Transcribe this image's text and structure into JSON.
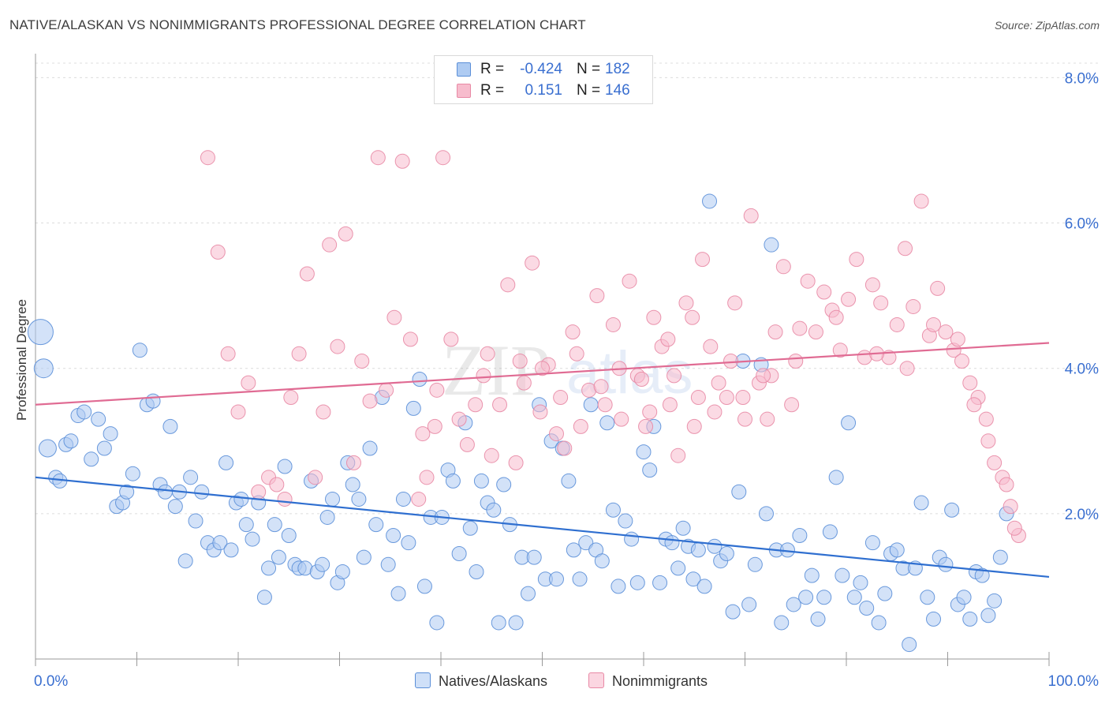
{
  "header": {
    "title": "NATIVE/ALASKAN VS NONIMMIGRANTS PROFESSIONAL DEGREE CORRELATION CHART",
    "source": "Source: ZipAtlas.com"
  },
  "watermark": {
    "zip": "ZIP",
    "atlas": "atlas"
  },
  "legend": {
    "r_label": "R =",
    "n_label": "N =",
    "rows": [
      {
        "r": "-0.424",
        "n": "182"
      },
      {
        "r": "0.151",
        "n": "146"
      }
    ]
  },
  "colors": {
    "blue_fill": "#aecbf2",
    "blue_stroke": "#5b8fd8",
    "blue_line": "#2f6fd0",
    "pink_fill": "#f7bccd",
    "pink_stroke": "#e889a5",
    "pink_line": "#e06b93",
    "grid": "#dcdcdc",
    "tick_label": "#3a6fd0"
  },
  "chart_data": {
    "type": "scatter",
    "title": "NATIVE/ALASKAN VS NONIMMIGRANTS PROFESSIONAL DEGREE CORRELATION CHART",
    "xlabel": "",
    "ylabel": "Professional Degree",
    "xlim": [
      0,
      100
    ],
    "ylim": [
      0,
      8.2
    ],
    "x_tick_labels": [
      "0.0%",
      "100.0%"
    ],
    "y_ticks": [
      2,
      4,
      6,
      8
    ],
    "y_tick_labels": [
      "2.0%",
      "4.0%",
      "6.0%",
      "8.0%"
    ],
    "grid": true,
    "legend_position": "top-center",
    "series": [
      {
        "name": "Natives/Alaskans",
        "color": "#5b8fd8",
        "trendline": {
          "x": [
            0,
            100
          ],
          "y": [
            2.5,
            1.13
          ]
        },
        "points": [
          [
            0.5,
            4.5
          ],
          [
            0.8,
            4.0
          ],
          [
            1.2,
            2.9
          ],
          [
            2.0,
            2.5
          ],
          [
            2.4,
            2.45
          ],
          [
            3.0,
            2.95
          ],
          [
            3.5,
            3.0
          ],
          [
            4.2,
            3.35
          ],
          [
            4.8,
            3.4
          ],
          [
            5.5,
            2.75
          ],
          [
            6.2,
            3.3
          ],
          [
            6.8,
            2.9
          ],
          [
            7.4,
            3.1
          ],
          [
            8.0,
            2.1
          ],
          [
            8.6,
            2.15
          ],
          [
            9.0,
            2.3
          ],
          [
            9.6,
            2.55
          ],
          [
            10.3,
            4.25
          ],
          [
            11.0,
            3.5
          ],
          [
            11.6,
            3.55
          ],
          [
            12.3,
            2.4
          ],
          [
            12.8,
            2.3
          ],
          [
            13.3,
            3.2
          ],
          [
            13.8,
            2.1
          ],
          [
            14.2,
            2.3
          ],
          [
            14.8,
            1.35
          ],
          [
            15.3,
            2.5
          ],
          [
            15.8,
            1.9
          ],
          [
            16.4,
            2.3
          ],
          [
            17.0,
            1.6
          ],
          [
            17.6,
            1.5
          ],
          [
            18.2,
            1.6
          ],
          [
            18.8,
            2.7
          ],
          [
            19.3,
            1.5
          ],
          [
            19.8,
            2.15
          ],
          [
            20.3,
            2.2
          ],
          [
            20.8,
            1.85
          ],
          [
            21.4,
            1.65
          ],
          [
            22.0,
            2.15
          ],
          [
            22.6,
            0.85
          ],
          [
            23.0,
            1.25
          ],
          [
            23.6,
            1.85
          ],
          [
            24.0,
            1.4
          ],
          [
            24.6,
            2.65
          ],
          [
            25.0,
            1.7
          ],
          [
            25.6,
            1.3
          ],
          [
            26.0,
            1.25
          ],
          [
            26.6,
            1.25
          ],
          [
            27.2,
            2.45
          ],
          [
            27.8,
            1.2
          ],
          [
            28.3,
            1.3
          ],
          [
            28.8,
            1.95
          ],
          [
            29.3,
            2.2
          ],
          [
            29.8,
            1.05
          ],
          [
            30.3,
            1.2
          ],
          [
            30.8,
            2.7
          ],
          [
            31.3,
            2.4
          ],
          [
            31.9,
            2.2
          ],
          [
            32.4,
            1.4
          ],
          [
            33.0,
            2.9
          ],
          [
            33.6,
            1.85
          ],
          [
            34.2,
            3.6
          ],
          [
            34.8,
            1.3
          ],
          [
            35.3,
            1.7
          ],
          [
            35.8,
            0.9
          ],
          [
            36.3,
            2.2
          ],
          [
            36.8,
            1.6
          ],
          [
            37.3,
            3.45
          ],
          [
            37.9,
            3.85
          ],
          [
            38.4,
            1.0
          ],
          [
            39.0,
            1.95
          ],
          [
            39.6,
            0.5
          ],
          [
            40.1,
            1.95
          ],
          [
            40.7,
            2.6
          ],
          [
            41.2,
            2.45
          ],
          [
            41.8,
            1.45
          ],
          [
            42.4,
            3.25
          ],
          [
            42.9,
            1.8
          ],
          [
            43.5,
            1.2
          ],
          [
            44.0,
            2.45
          ],
          [
            44.6,
            2.15
          ],
          [
            45.2,
            2.05
          ],
          [
            45.7,
            0.5
          ],
          [
            46.2,
            2.4
          ],
          [
            46.8,
            1.85
          ],
          [
            47.4,
            0.5
          ],
          [
            48.0,
            1.4
          ],
          [
            48.6,
            0.9
          ],
          [
            49.2,
            1.4
          ],
          [
            49.7,
            3.5
          ],
          [
            50.3,
            1.1
          ],
          [
            50.9,
            3.0
          ],
          [
            51.4,
            1.1
          ],
          [
            52.0,
            2.9
          ],
          [
            52.6,
            2.45
          ],
          [
            53.1,
            1.5
          ],
          [
            53.7,
            1.1
          ],
          [
            54.3,
            1.6
          ],
          [
            54.8,
            3.5
          ],
          [
            55.3,
            1.5
          ],
          [
            55.9,
            1.35
          ],
          [
            56.4,
            3.25
          ],
          [
            57.0,
            2.05
          ],
          [
            57.5,
            1.0
          ],
          [
            58.2,
            1.9
          ],
          [
            58.8,
            1.65
          ],
          [
            59.4,
            1.05
          ],
          [
            60.0,
            2.85
          ],
          [
            60.6,
            2.6
          ],
          [
            61.0,
            3.2
          ],
          [
            61.6,
            1.05
          ],
          [
            62.2,
            1.65
          ],
          [
            62.8,
            1.6
          ],
          [
            63.4,
            1.25
          ],
          [
            63.9,
            1.8
          ],
          [
            64.4,
            1.55
          ],
          [
            64.9,
            1.1
          ],
          [
            65.4,
            1.5
          ],
          [
            66.0,
            1.0
          ],
          [
            66.5,
            6.3
          ],
          [
            67.0,
            1.55
          ],
          [
            67.6,
            1.35
          ],
          [
            68.2,
            1.45
          ],
          [
            68.8,
            0.65
          ],
          [
            69.4,
            2.3
          ],
          [
            69.8,
            4.1
          ],
          [
            70.4,
            0.75
          ],
          [
            71.0,
            1.3
          ],
          [
            71.6,
            4.05
          ],
          [
            72.1,
            2.0
          ],
          [
            72.6,
            5.7
          ],
          [
            73.1,
            1.5
          ],
          [
            73.6,
            0.5
          ],
          [
            74.2,
            1.5
          ],
          [
            74.8,
            0.75
          ],
          [
            75.4,
            1.7
          ],
          [
            76.0,
            0.85
          ],
          [
            76.6,
            1.15
          ],
          [
            77.2,
            0.55
          ],
          [
            77.8,
            0.85
          ],
          [
            78.4,
            1.75
          ],
          [
            79.0,
            2.5
          ],
          [
            79.6,
            1.15
          ],
          [
            80.2,
            3.25
          ],
          [
            80.8,
            0.85
          ],
          [
            81.4,
            1.05
          ],
          [
            82.0,
            0.7
          ],
          [
            82.6,
            1.6
          ],
          [
            83.2,
            0.5
          ],
          [
            83.8,
            0.9
          ],
          [
            84.4,
            1.45
          ],
          [
            85.0,
            1.5
          ],
          [
            85.6,
            1.25
          ],
          [
            86.2,
            0.2
          ],
          [
            86.8,
            1.25
          ],
          [
            87.4,
            2.15
          ],
          [
            88.0,
            0.85
          ],
          [
            88.6,
            0.55
          ],
          [
            89.2,
            1.4
          ],
          [
            89.8,
            1.3
          ],
          [
            90.4,
            2.05
          ],
          [
            91.0,
            0.75
          ],
          [
            91.6,
            0.85
          ],
          [
            92.2,
            0.55
          ],
          [
            92.8,
            1.2
          ],
          [
            93.4,
            1.15
          ],
          [
            94.0,
            0.6
          ],
          [
            94.6,
            0.8
          ],
          [
            95.2,
            1.4
          ],
          [
            95.8,
            2.0
          ]
        ]
      },
      {
        "name": "Nonimmigrants",
        "color": "#e889a5",
        "trendline": {
          "x": [
            0,
            100
          ],
          "y": [
            3.5,
            4.35
          ]
        },
        "points": [
          [
            17.0,
            6.9
          ],
          [
            18.0,
            5.6
          ],
          [
            19.0,
            4.2
          ],
          [
            20.0,
            3.4
          ],
          [
            21.0,
            3.8
          ],
          [
            22.0,
            2.3
          ],
          [
            23.0,
            2.5
          ],
          [
            23.8,
            2.4
          ],
          [
            24.6,
            2.2
          ],
          [
            25.2,
            3.6
          ],
          [
            26.0,
            4.2
          ],
          [
            26.8,
            5.3
          ],
          [
            27.6,
            2.5
          ],
          [
            28.4,
            3.4
          ],
          [
            29.0,
            5.7
          ],
          [
            29.8,
            4.3
          ],
          [
            30.6,
            5.85
          ],
          [
            31.4,
            2.7
          ],
          [
            32.2,
            4.1
          ],
          [
            33.0,
            3.55
          ],
          [
            33.8,
            6.9
          ],
          [
            34.6,
            3.7
          ],
          [
            35.4,
            4.7
          ],
          [
            36.2,
            6.85
          ],
          [
            37.0,
            4.4
          ],
          [
            37.8,
            2.2
          ],
          [
            38.6,
            2.5
          ],
          [
            39.4,
            3.2
          ],
          [
            40.2,
            6.9
          ],
          [
            41.0,
            4.4
          ],
          [
            41.8,
            3.3
          ],
          [
            42.6,
            2.95
          ],
          [
            43.4,
            3.5
          ],
          [
            44.2,
            3.9
          ],
          [
            45.0,
            2.8
          ],
          [
            45.8,
            3.5
          ],
          [
            46.6,
            5.15
          ],
          [
            47.4,
            2.7
          ],
          [
            48.2,
            3.8
          ],
          [
            49.0,
            5.45
          ],
          [
            49.8,
            3.4
          ],
          [
            50.6,
            4.05
          ],
          [
            51.4,
            3.1
          ],
          [
            52.2,
            2.9
          ],
          [
            53.0,
            4.5
          ],
          [
            53.8,
            3.2
          ],
          [
            54.6,
            3.7
          ],
          [
            55.4,
            5.0
          ],
          [
            56.2,
            3.5
          ],
          [
            57.0,
            4.6
          ],
          [
            57.8,
            3.3
          ],
          [
            58.6,
            5.2
          ],
          [
            59.4,
            3.9
          ],
          [
            60.2,
            3.2
          ],
          [
            61.0,
            4.7
          ],
          [
            61.8,
            4.3
          ],
          [
            62.6,
            3.5
          ],
          [
            63.4,
            2.8
          ],
          [
            64.2,
            4.9
          ],
          [
            65.0,
            3.2
          ],
          [
            65.8,
            5.5
          ],
          [
            66.6,
            4.3
          ],
          [
            67.4,
            3.8
          ],
          [
            68.2,
            3.6
          ],
          [
            69.0,
            4.9
          ],
          [
            69.8,
            3.6
          ],
          [
            70.6,
            6.1
          ],
          [
            71.4,
            3.8
          ],
          [
            72.2,
            3.3
          ],
          [
            73.0,
            4.5
          ],
          [
            73.8,
            5.4
          ],
          [
            74.6,
            3.5
          ],
          [
            75.4,
            4.55
          ],
          [
            76.2,
            5.2
          ],
          [
            77.0,
            4.5
          ],
          [
            77.8,
            5.05
          ],
          [
            78.6,
            4.8
          ],
          [
            79.4,
            4.25
          ],
          [
            80.2,
            4.95
          ],
          [
            81.0,
            5.5
          ],
          [
            81.8,
            4.15
          ],
          [
            82.6,
            5.15
          ],
          [
            83.4,
            4.9
          ],
          [
            84.2,
            4.15
          ],
          [
            85.0,
            4.6
          ],
          [
            85.8,
            5.65
          ],
          [
            86.6,
            4.85
          ],
          [
            87.4,
            6.3
          ],
          [
            88.2,
            4.45
          ],
          [
            89.0,
            5.1
          ],
          [
            89.8,
            4.5
          ],
          [
            90.6,
            4.25
          ],
          [
            91.4,
            4.1
          ],
          [
            92.2,
            3.8
          ],
          [
            93.0,
            3.6
          ],
          [
            93.8,
            3.3
          ],
          [
            94.6,
            2.7
          ],
          [
            95.4,
            2.5
          ],
          [
            96.2,
            2.1
          ],
          [
            97.0,
            1.7
          ],
          [
            62.4,
            4.4
          ],
          [
            64.8,
            4.7
          ],
          [
            68.6,
            4.1
          ],
          [
            72.6,
            3.9
          ],
          [
            75.0,
            4.1
          ],
          [
            79.0,
            4.7
          ],
          [
            83.0,
            4.2
          ],
          [
            86.0,
            4.0
          ],
          [
            88.6,
            4.6
          ],
          [
            91.0,
            4.4
          ],
          [
            92.6,
            3.5
          ],
          [
            94.0,
            3.0
          ],
          [
            95.8,
            2.4
          ],
          [
            96.6,
            1.8
          ],
          [
            38.2,
            3.1
          ],
          [
            39.6,
            3.7
          ],
          [
            44.6,
            4.2
          ],
          [
            47.8,
            4.1
          ],
          [
            50.0,
            4.0
          ],
          [
            51.8,
            3.6
          ],
          [
            53.4,
            4.2
          ],
          [
            55.8,
            3.75
          ],
          [
            57.6,
            4.0
          ],
          [
            59.8,
            3.85
          ],
          [
            60.6,
            3.4
          ],
          [
            63.0,
            3.9
          ],
          [
            65.4,
            3.6
          ],
          [
            67.0,
            3.4
          ],
          [
            70.0,
            3.3
          ],
          [
            71.8,
            3.9
          ]
        ]
      }
    ]
  },
  "bottom_legend": [
    {
      "label": "Natives/Alaskans"
    },
    {
      "label": "Nonimmigrants"
    }
  ]
}
